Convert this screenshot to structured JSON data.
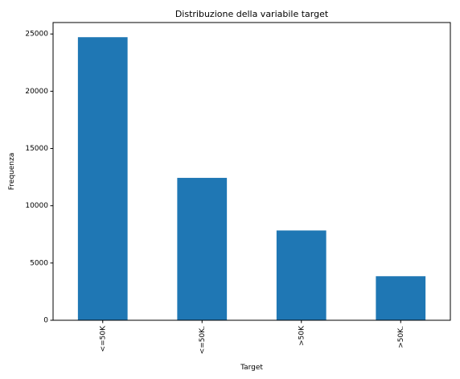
{
  "chart_data": {
    "type": "bar",
    "title": "Distribuzione della variabile target",
    "xlabel": "Target",
    "ylabel": "Frequenza",
    "categories": [
      "<=50K",
      "<=50K.",
      ">50K",
      ">50K."
    ],
    "values": [
      24720,
      12435,
      7841,
      3846
    ],
    "ylim": [
      0,
      26000
    ],
    "yticks": [
      0,
      5000,
      10000,
      15000,
      20000,
      25000
    ],
    "grid": false,
    "bar_color": "#1f77b4"
  }
}
